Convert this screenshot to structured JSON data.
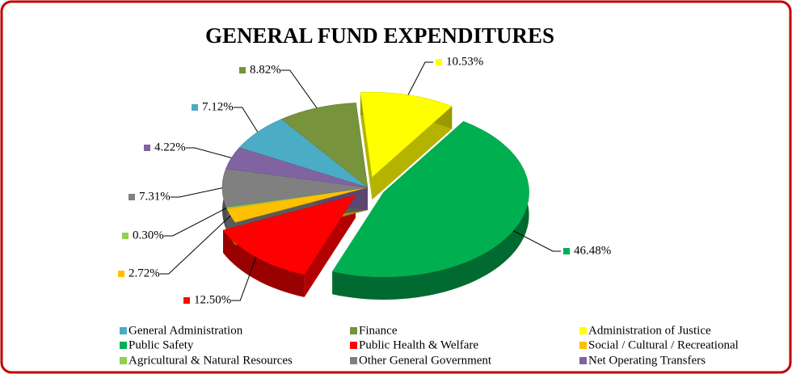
{
  "chart_data": {
    "type": "pie",
    "title": "GENERAL FUND EXPENDITURES",
    "categories": [
      "General Administration",
      "Finance",
      "Administration of Justice",
      "Public Safety",
      "Public Health & Welfare",
      "Social / Cultural / Recreational",
      "Agricultural & Natural Resources",
      "Other General Government",
      "Net Operating Transfers"
    ],
    "values": [
      7.12,
      8.82,
      10.53,
      46.48,
      12.5,
      2.72,
      0.3,
      7.31,
      4.22
    ],
    "value_labels": [
      "7.12%",
      "8.82%",
      "10.53%",
      "46.48%",
      "12.50%",
      "2.72%",
      "0.30%",
      "7.31%",
      "4.22%"
    ],
    "colors": [
      "#4bacc6",
      "#77933c",
      "#ffff00",
      "#00b050",
      "#ff0000",
      "#ffc000",
      "#92d050",
      "#808080",
      "#8064a2"
    ],
    "legend": "bottom"
  }
}
